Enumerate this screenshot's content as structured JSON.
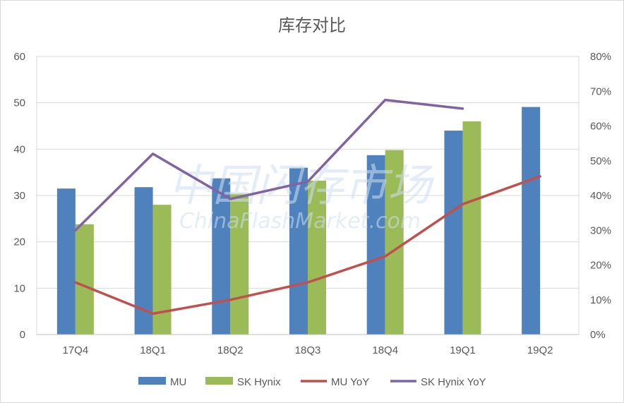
{
  "chart_data": {
    "type": "bar",
    "title": "库存对比",
    "categories": [
      "17Q4",
      "18Q1",
      "18Q2",
      "18Q3",
      "18Q4",
      "19Q1",
      "19Q2"
    ],
    "y_left": {
      "ylim": [
        0,
        60
      ],
      "ticks": [
        "0",
        "10",
        "20",
        "30",
        "40",
        "50",
        "60"
      ]
    },
    "y_right": {
      "ylim": [
        0,
        0.8
      ],
      "ticks": [
        "0%",
        "10%",
        "20%",
        "30%",
        "40%",
        "50%",
        "60%",
        "70%",
        "80%"
      ]
    },
    "series": [
      {
        "name": "MU",
        "type": "bar",
        "axis": "left",
        "color": "#4f81bd",
        "values": [
          31.5,
          31.8,
          33.7,
          36.0,
          38.7,
          44.0,
          49.1
        ]
      },
      {
        "name": "SK Hynix",
        "type": "bar",
        "axis": "left",
        "color": "#9bbb59",
        "values": [
          23.8,
          28.0,
          30.4,
          33.2,
          39.8,
          46.0,
          null
        ]
      },
      {
        "name": "MU YoY",
        "type": "line",
        "axis": "right",
        "color": "#c0504d",
        "values": [
          0.15,
          0.06,
          0.1,
          0.15,
          0.225,
          0.375,
          0.455
        ]
      },
      {
        "name": "SK Hynix YoY",
        "type": "line",
        "axis": "right",
        "color": "#8064a2",
        "values": [
          0.3,
          0.52,
          0.39,
          0.44,
          0.675,
          0.65,
          null
        ]
      }
    ],
    "grid": true,
    "legend": "bottom"
  },
  "watermark": {
    "line1": "中国闪存市场",
    "line2": "ChinaFlashMarket.com"
  }
}
